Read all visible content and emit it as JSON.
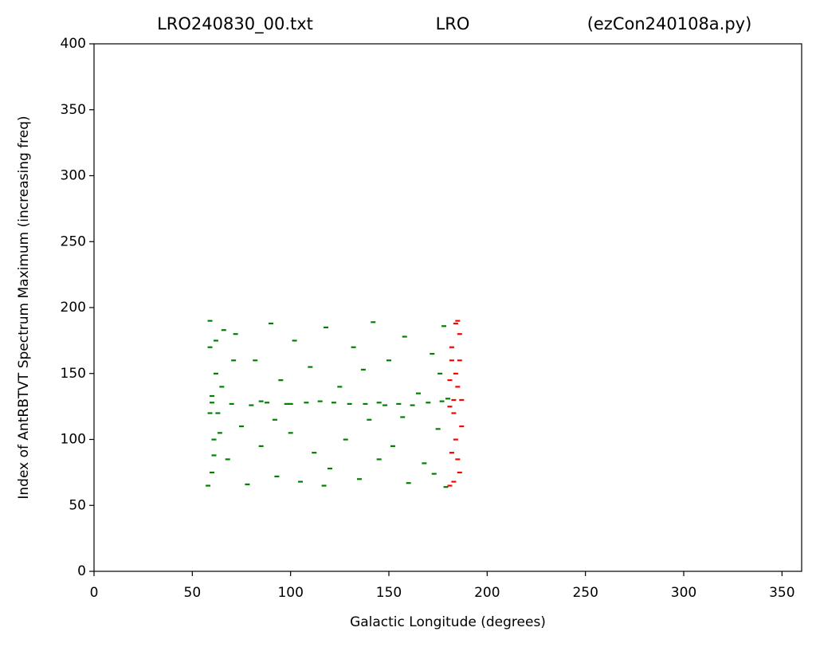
{
  "chart_data": {
    "type": "scatter",
    "title_left": "LRO240830_00.txt",
    "title_center": "LRO",
    "title_right": "(ezCon240108a.py)",
    "xlabel": "Galactic Longitude (degrees)",
    "ylabel": "Index of AntRBTVT Spectrum Maximum (increasing freq)",
    "xlim": [
      0,
      360
    ],
    "ylim": [
      0,
      400
    ],
    "xticks": [
      0,
      50,
      100,
      150,
      200,
      250,
      300,
      350
    ],
    "yticks": [
      0,
      50,
      100,
      150,
      200,
      250,
      300,
      350,
      400
    ],
    "series": [
      {
        "color": "#008000",
        "x": [
          58,
          59,
          60,
          61,
          62,
          60,
          59,
          63,
          65,
          68,
          70,
          72,
          75,
          78,
          80,
          82,
          85,
          88,
          90,
          93,
          95,
          98,
          100,
          102,
          105,
          108,
          110,
          112,
          115,
          118,
          120,
          122,
          125,
          128,
          130,
          132,
          135,
          138,
          140,
          142,
          145,
          148,
          150,
          152,
          155,
          158,
          160,
          162,
          165,
          168,
          170,
          172,
          175,
          177,
          178,
          179,
          180,
          176,
          64,
          66,
          71,
          92,
          117,
          137,
          157,
          173,
          61,
          62,
          100,
          60,
          59,
          85,
          145
        ],
        "values": [
          65,
          190,
          128,
          100,
          150,
          75,
          170,
          120,
          140,
          85,
          127,
          180,
          110,
          66,
          126,
          160,
          95,
          128,
          188,
          72,
          145,
          127,
          105,
          175,
          68,
          128,
          155,
          90,
          129,
          185,
          78,
          128,
          140,
          100,
          127,
          170,
          70,
          127,
          115,
          189,
          85,
          126,
          160,
          95,
          127,
          178,
          67,
          126,
          135,
          82,
          128,
          165,
          108,
          129,
          186,
          64,
          131,
          150,
          105,
          183,
          160,
          115,
          65,
          153,
          117,
          74,
          88,
          175,
          127,
          133,
          120,
          129,
          128
        ]
      },
      {
        "color": "#ff0000",
        "x": [
          181,
          182,
          183,
          184,
          185,
          186,
          187,
          182,
          184,
          185,
          181,
          186,
          183,
          187,
          182,
          185,
          184,
          181,
          186,
          183
        ],
        "values": [
          65,
          90,
          120,
          150,
          190,
          75,
          130,
          170,
          100,
          140,
          125,
          180,
          68,
          110,
          160,
          85,
          188,
          145,
          160,
          130
        ]
      }
    ]
  }
}
